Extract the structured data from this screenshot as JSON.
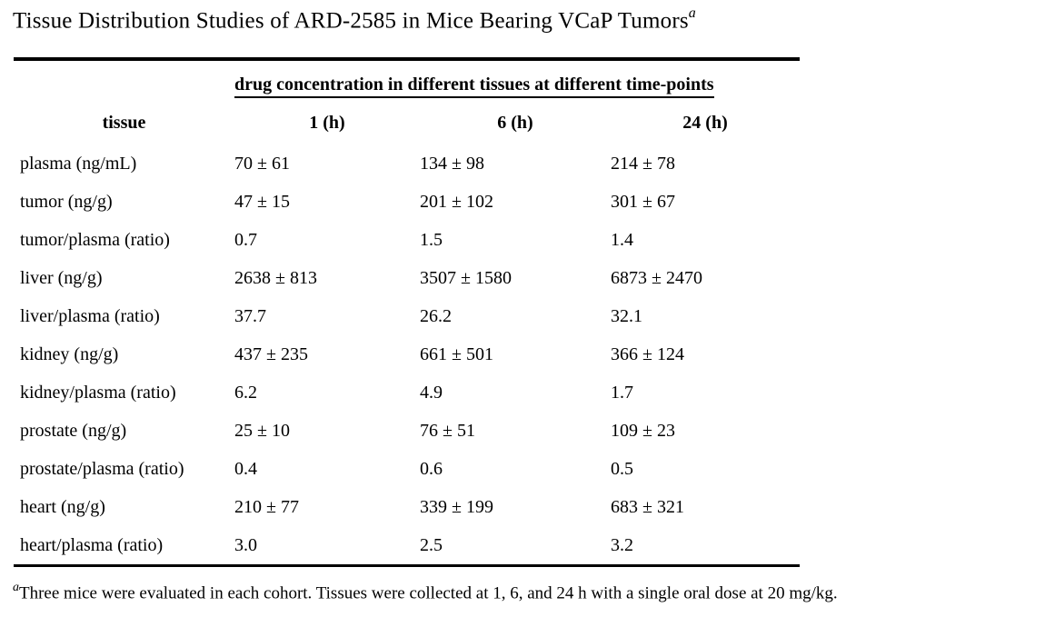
{
  "title": {
    "text": "Tissue Distribution Studies of ARD-2585 in Mice Bearing VCaP Tumors",
    "superscript": "a"
  },
  "table": {
    "span_header": "drug concentration in different tissues at different time-points",
    "columns": [
      "tissue",
      "1 (h)",
      "6 (h)",
      "24 (h)"
    ],
    "rows": [
      {
        "tissue": "plasma (ng/mL)",
        "values": [
          "70 ± 61",
          "134 ± 98",
          "214 ± 78"
        ]
      },
      {
        "tissue": "tumor (ng/g)",
        "values": [
          "47 ± 15",
          "201 ± 102",
          "301 ± 67"
        ]
      },
      {
        "tissue": "tumor/plasma (ratio)",
        "values": [
          "0.7",
          "1.5",
          "1.4"
        ]
      },
      {
        "tissue": "liver (ng/g)",
        "values": [
          "2638 ± 813",
          "3507 ± 1580",
          "6873 ± 2470"
        ]
      },
      {
        "tissue": "liver/plasma (ratio)",
        "values": [
          "37.7",
          "26.2",
          "32.1"
        ]
      },
      {
        "tissue": "kidney (ng/g)",
        "values": [
          "437 ± 235",
          "661 ± 501",
          "366 ± 124"
        ]
      },
      {
        "tissue": "kidney/plasma (ratio)",
        "values": [
          "6.2",
          "4.9",
          "1.7"
        ]
      },
      {
        "tissue": "prostate (ng/g)",
        "values": [
          "25 ± 10",
          "76 ± 51",
          "109 ± 23"
        ]
      },
      {
        "tissue": "prostate/plasma (ratio)",
        "values": [
          "0.4",
          "0.6",
          "0.5"
        ]
      },
      {
        "tissue": "heart (ng/g)",
        "values": [
          "210 ± 77",
          "339 ± 199",
          "683 ± 321"
        ]
      },
      {
        "tissue": "heart/plasma (ratio)",
        "values": [
          "3.0",
          "2.5",
          "3.2"
        ]
      }
    ]
  },
  "footnote": {
    "marker": "a",
    "text": "Three mice were evaluated in each cohort. Tissues were collected at 1, 6, and 24 h with a single oral dose at 20 mg/kg."
  }
}
